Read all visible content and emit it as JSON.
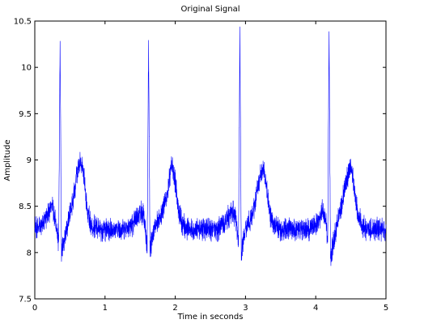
{
  "chart_data": {
    "type": "line",
    "title": "Original Signal",
    "xlabel": "Time in seconds",
    "ylabel": "Amplitude",
    "xlim": [
      0,
      5
    ],
    "ylim": [
      7.5,
      10.5
    ],
    "x_ticks": [
      0,
      1,
      2,
      3,
      4,
      5
    ],
    "y_ticks": [
      7.5,
      8,
      8.5,
      9,
      9.5,
      10,
      10.5
    ],
    "grid": false,
    "line_color": "#0000ff",
    "series": [
      {
        "x": [
          0.0,
          0.1,
          0.2,
          0.25,
          0.3,
          0.34,
          0.36,
          0.38,
          0.4,
          0.45,
          0.5,
          0.55,
          0.6,
          0.65,
          0.7,
          0.75,
          0.8,
          0.9,
          1.0,
          1.2,
          1.4,
          1.5,
          1.55,
          1.6,
          1.62,
          1.64,
          1.66,
          1.7,
          1.8,
          1.9,
          1.95,
          2.0,
          2.05,
          2.1,
          2.2,
          2.4,
          2.6,
          2.7,
          2.8,
          2.86,
          2.9,
          2.92,
          2.94,
          2.96,
          3.0,
          3.1,
          3.2,
          3.25,
          3.3,
          3.35,
          3.4,
          3.5,
          3.7,
          3.9,
          4.0,
          4.1,
          4.15,
          4.17,
          4.19,
          4.21,
          4.25,
          4.35,
          4.45,
          4.5,
          4.55,
          4.6,
          4.7,
          4.9,
          5.0
        ],
        "y": [
          8.25,
          8.3,
          8.45,
          8.5,
          8.3,
          8.1,
          10.3,
          8.0,
          8.1,
          8.25,
          8.4,
          8.6,
          8.85,
          9.0,
          8.8,
          8.45,
          8.3,
          8.25,
          8.25,
          8.25,
          8.3,
          8.45,
          8.4,
          8.05,
          10.3,
          8.0,
          8.1,
          8.25,
          8.4,
          8.7,
          8.95,
          8.75,
          8.45,
          8.3,
          8.25,
          8.25,
          8.25,
          8.3,
          8.45,
          8.4,
          8.1,
          10.35,
          7.95,
          8.1,
          8.25,
          8.4,
          8.8,
          8.95,
          8.7,
          8.4,
          8.3,
          8.25,
          8.25,
          8.25,
          8.3,
          8.45,
          8.35,
          8.05,
          10.4,
          7.95,
          8.1,
          8.45,
          8.8,
          8.95,
          8.7,
          8.4,
          8.25,
          8.25,
          8.25
        ]
      }
    ]
  }
}
